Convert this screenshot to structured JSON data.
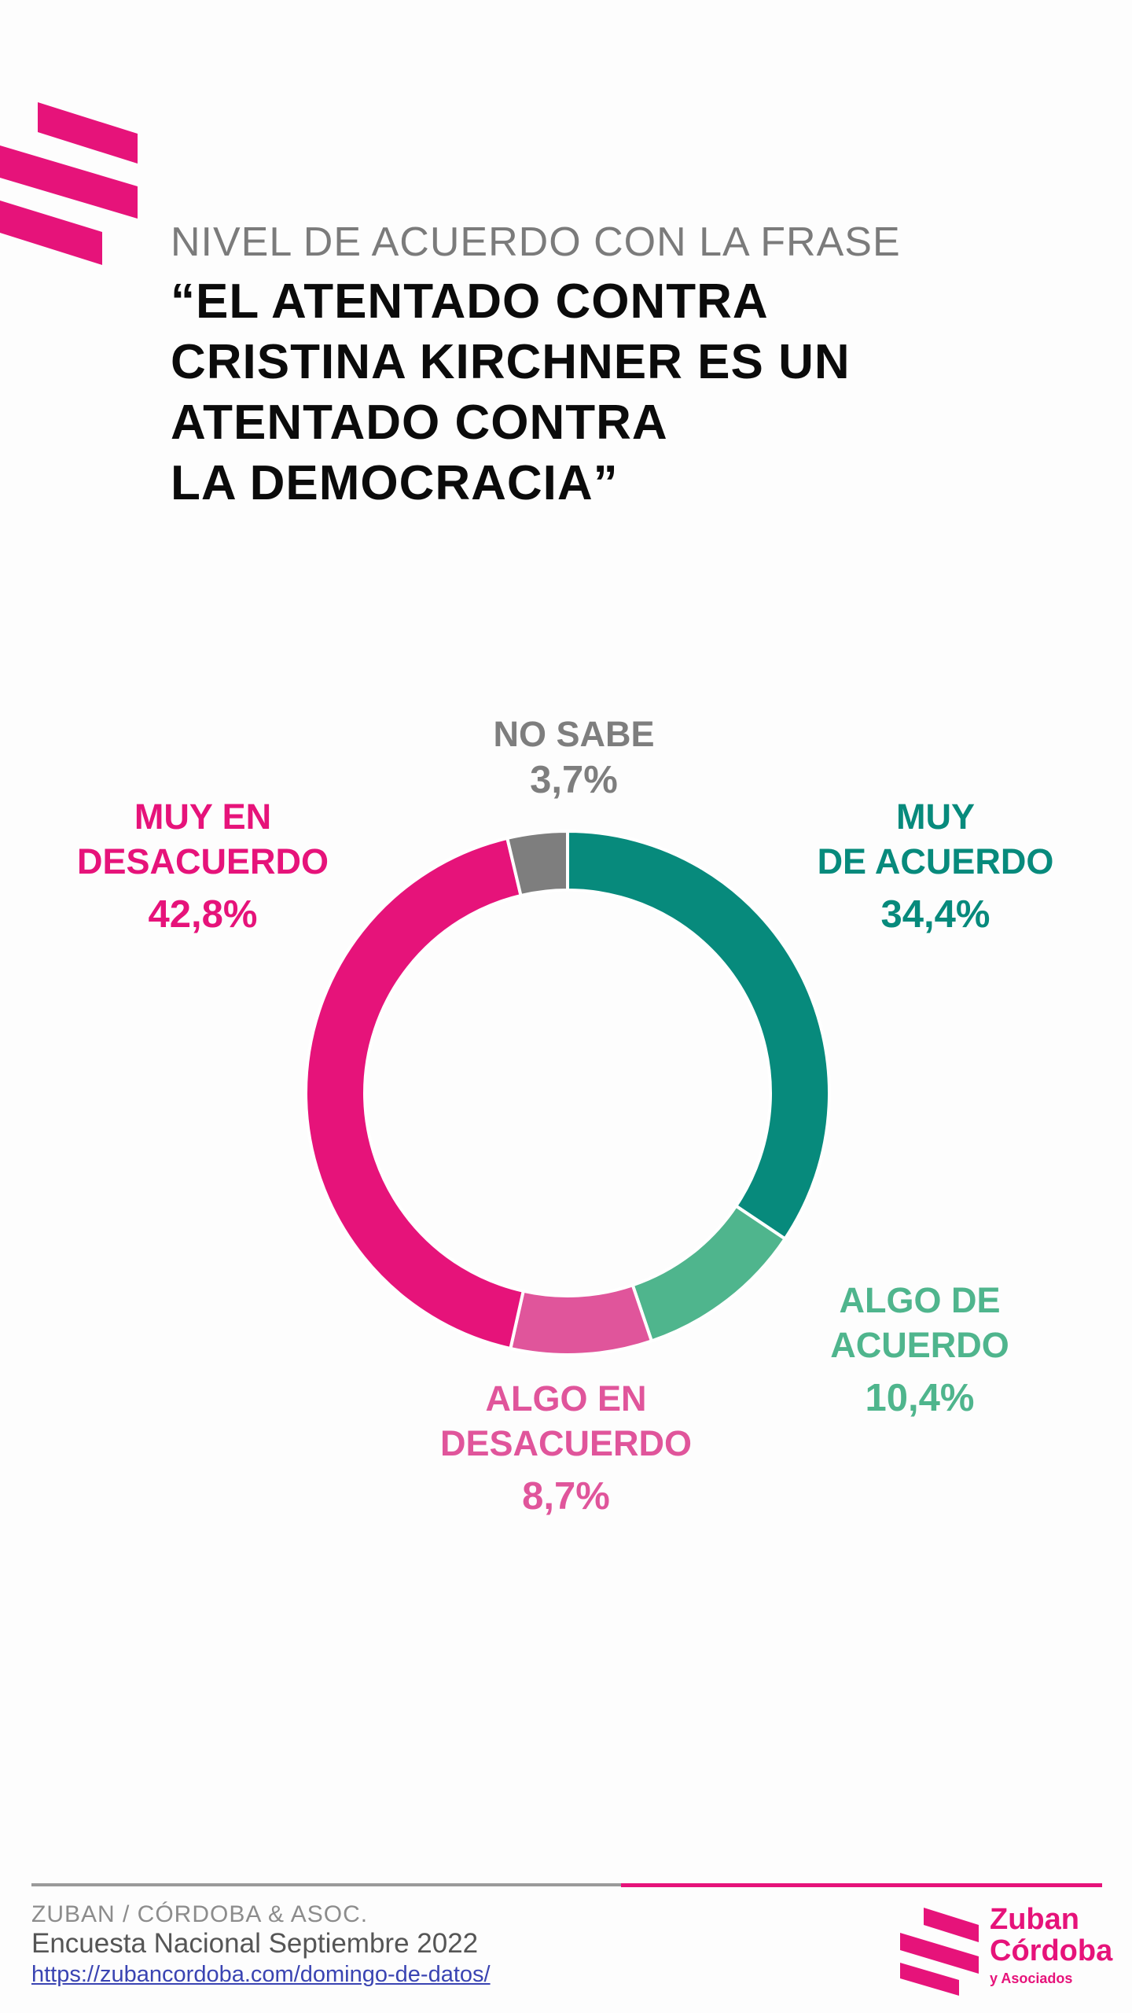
{
  "header": {
    "subtitle": "NIVEL DE ACUERDO CON LA FRASE",
    "title_lines": [
      "“EL ATENTADO CONTRA",
      "CRISTINA KIRCHNER ES UN",
      "ATENTADO CONTRA",
      "LA DEMOCRACIA”"
    ]
  },
  "colors": {
    "brand_pink": "#e6137a",
    "teal_dark": "#078a7c",
    "teal_light": "#4fb58d",
    "pink_light": "#e0559b",
    "gray": "#7e7e7e"
  },
  "chart_data": {
    "type": "pie",
    "donut": true,
    "slices": [
      {
        "label_lines": [
          "MUY",
          "DE ACUERDO"
        ],
        "value": 34.4,
        "value_label": "34,4%",
        "color": "#078a7c"
      },
      {
        "label_lines": [
          "ALGO DE",
          "ACUERDO"
        ],
        "value": 10.4,
        "value_label": "10,4%",
        "color": "#4fb58d"
      },
      {
        "label_lines": [
          "ALGO EN",
          "DESACUERDO"
        ],
        "value": 8.7,
        "value_label": "8,7%",
        "color": "#e0559b"
      },
      {
        "label_lines": [
          "MUY EN",
          "DESACUERDO"
        ],
        "value": 42.8,
        "value_label": "42,8%",
        "color": "#e6137a"
      },
      {
        "label_lines": [
          "NO SABE"
        ],
        "value": 3.7,
        "value_label": "3,7%",
        "color": "#7e7e7e"
      }
    ]
  },
  "footer": {
    "org": "ZUBAN / CÓRDOBA & ASOC.",
    "survey": "Encuesta Nacional Septiembre 2022",
    "link": "https://zubancordoba.com/domingo-de-datos/"
  },
  "logo": {
    "line1": "Zuban",
    "line2": "Córdoba",
    "line3": "y Asociados"
  }
}
